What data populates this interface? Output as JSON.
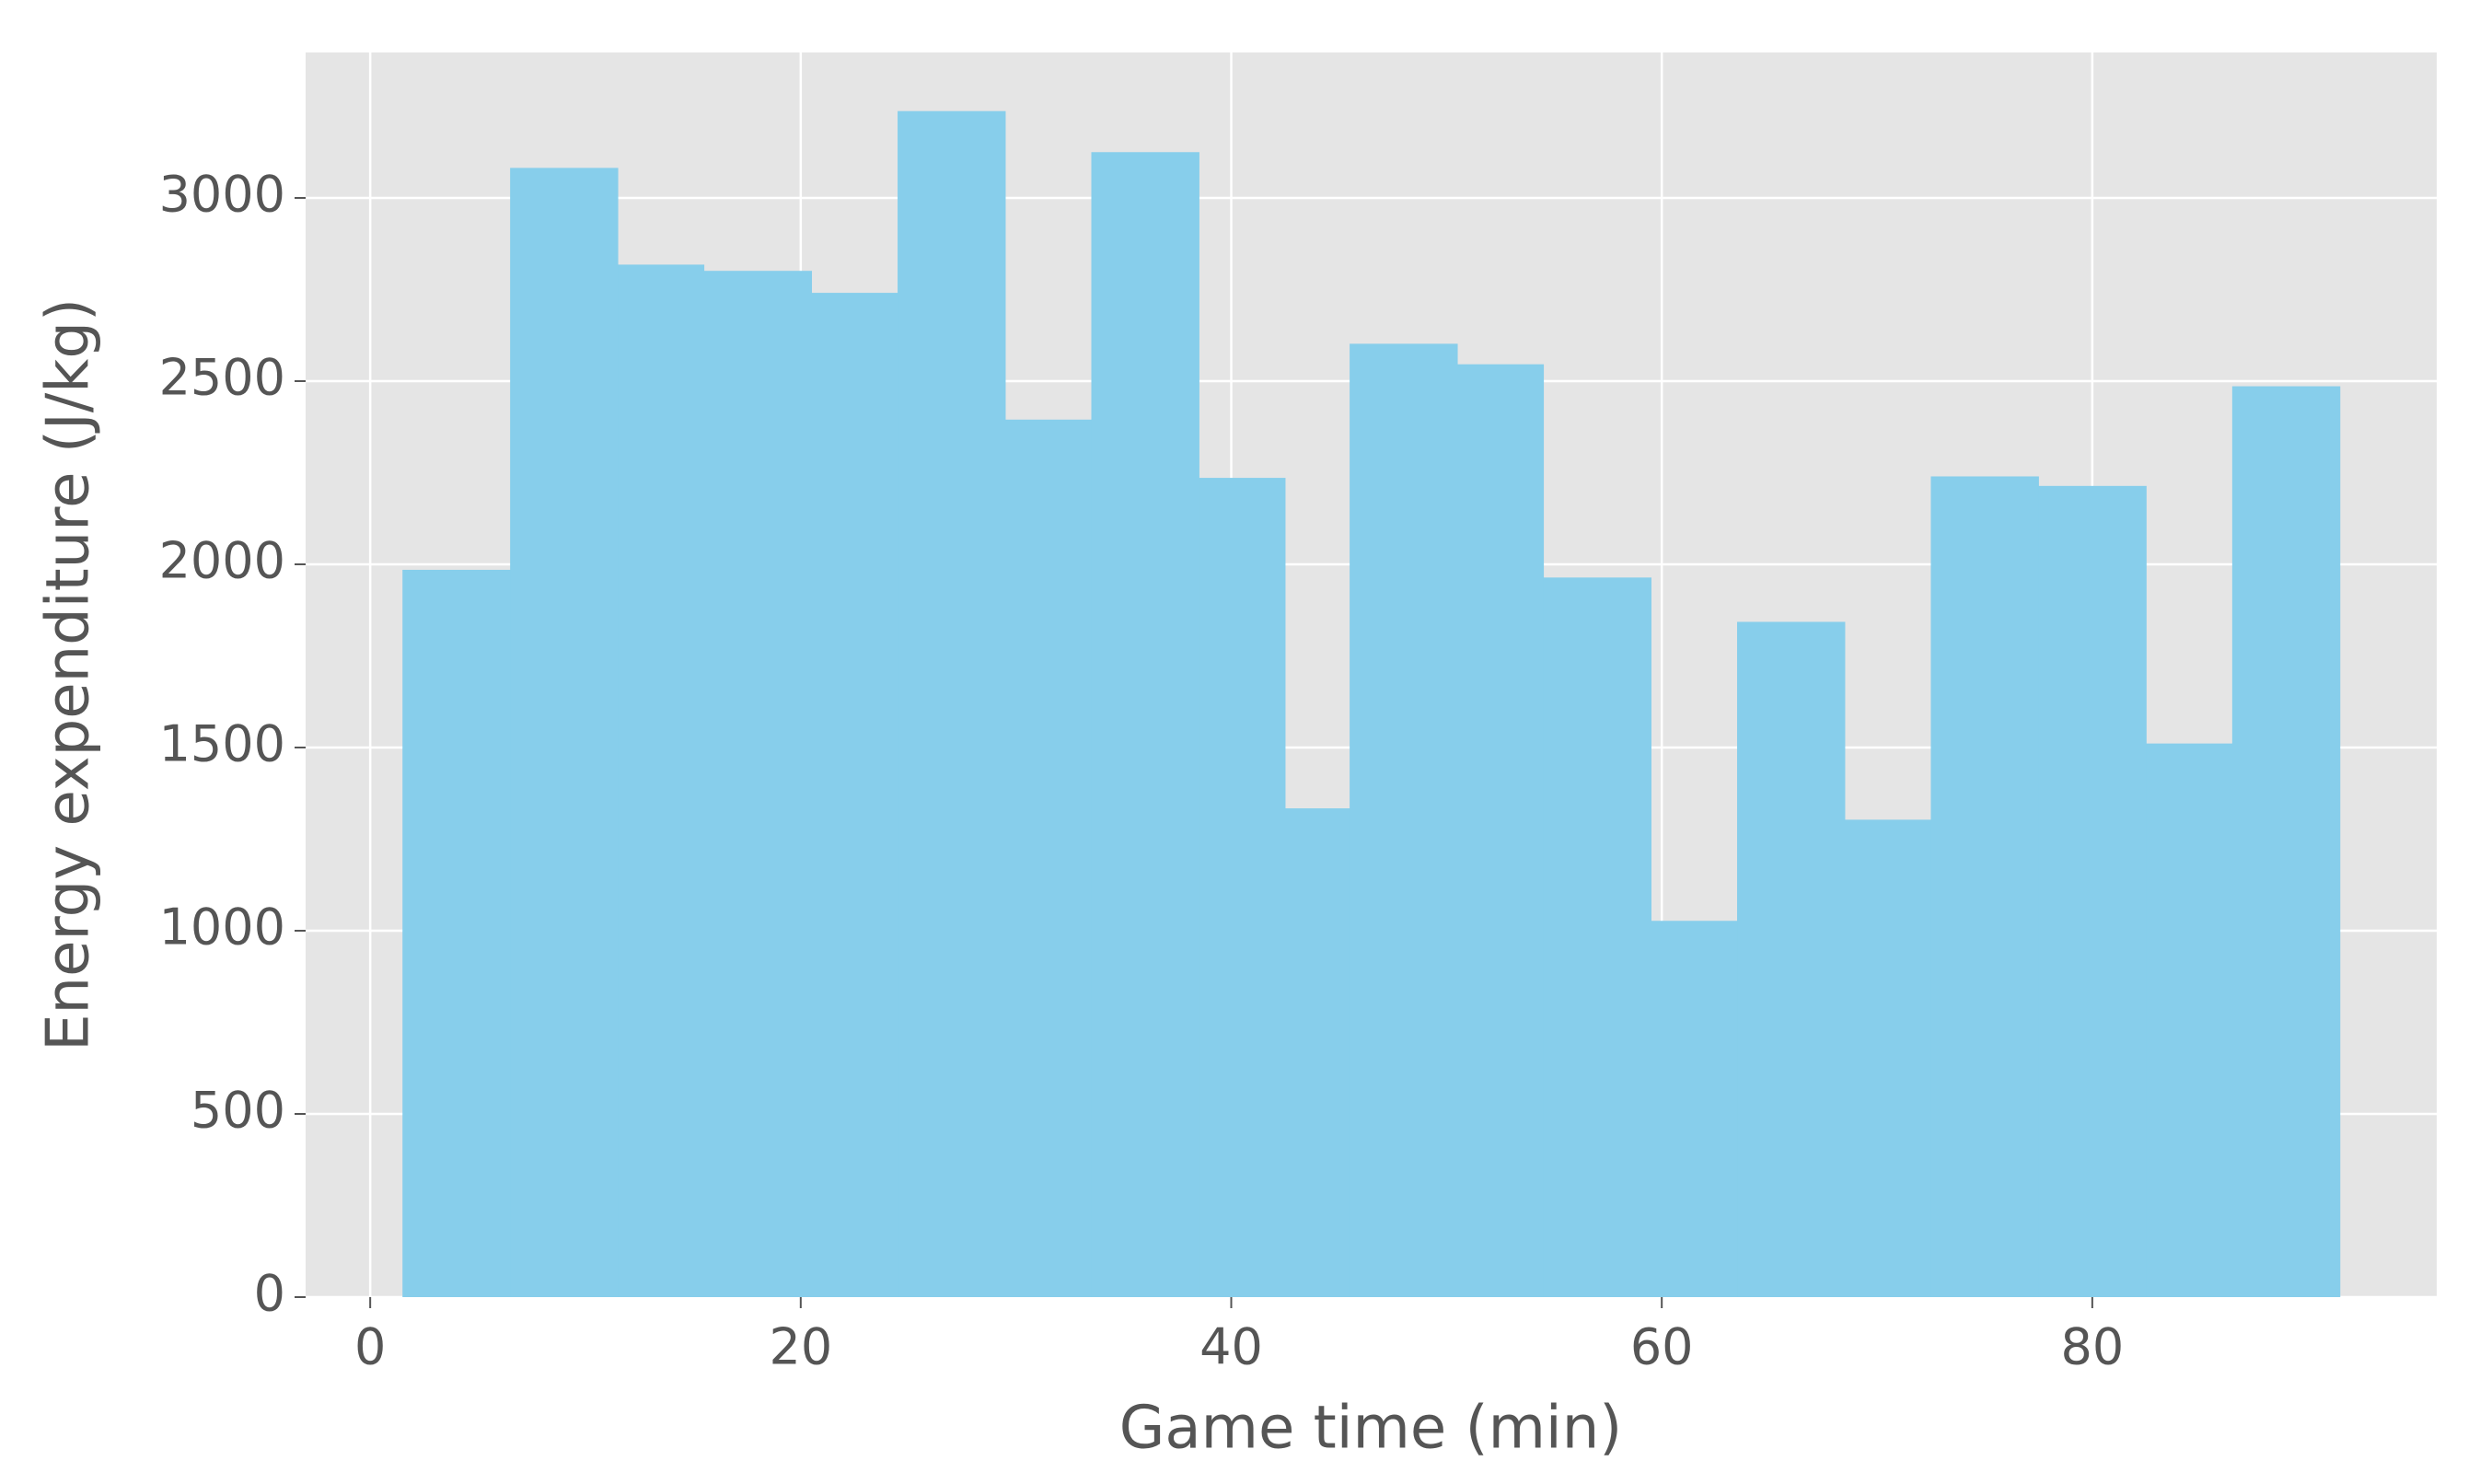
{
  "chart_data": {
    "type": "histogram",
    "x_label": "Game time (min)",
    "y_label": "Energy expenditure (J/kg)",
    "bins": [
      1.5,
      6.5,
      11.5,
      15.5,
      20.5,
      24.5,
      29.5,
      33.5,
      38.5,
      42.5,
      45.5,
      50.5,
      54.5,
      59.5,
      63.5,
      68.5,
      72.5,
      77.5,
      82.5,
      86.5,
      91.5
    ],
    "values": [
      1985,
      3082,
      2818,
      2801,
      2741,
      3237,
      2395,
      3125,
      2236,
      1334,
      2602,
      2546,
      1964,
      1027,
      1843,
      1303,
      2240,
      2214,
      1511,
      2486
    ],
    "color": "#87ceeb",
    "xlim": [
      -3,
      96
    ],
    "xticks": [
      0,
      20,
      40,
      60,
      80
    ],
    "ylim": [
      0,
      3397
    ],
    "yticks": [
      0,
      500,
      1000,
      1500,
      2000,
      2500,
      3000
    ],
    "grid": true
  }
}
